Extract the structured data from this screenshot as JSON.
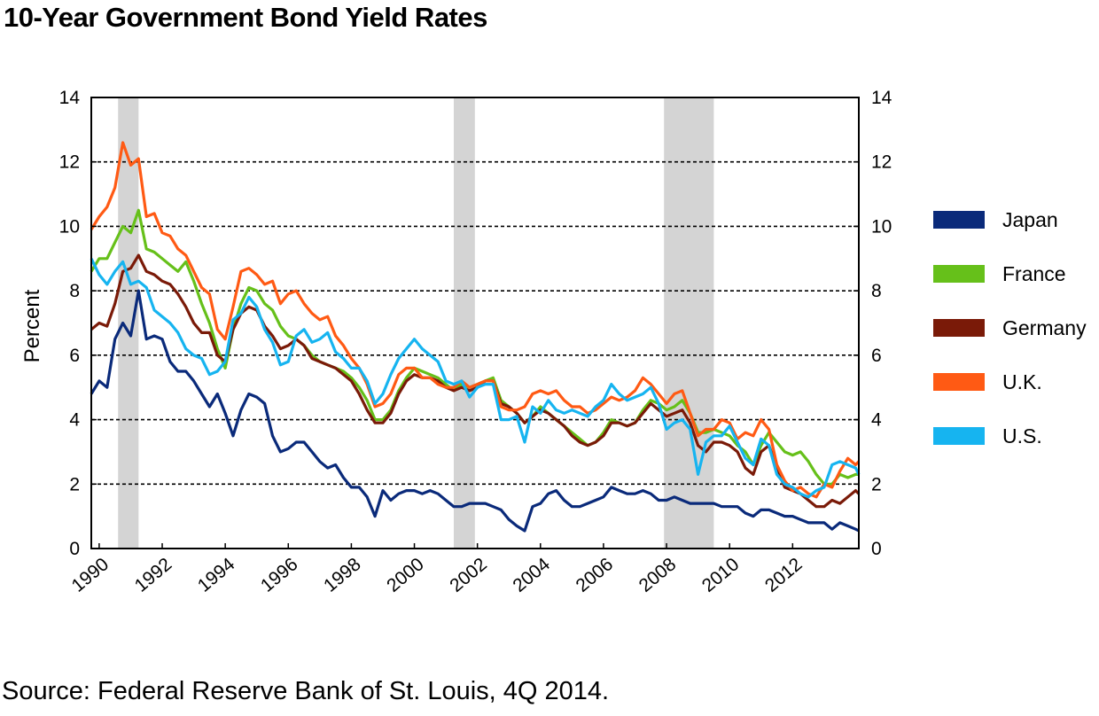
{
  "chart_data": {
    "type": "line",
    "title": "10-Year Government Bond Yield Rates",
    "source": "Source: Federal Reserve Bank of St. Louis, 4Q 2014.",
    "ylabel": "Percent",
    "ylim": [
      0,
      14
    ],
    "yticks": [
      "0",
      "2",
      "4",
      "6",
      "8",
      "10",
      "12",
      "14"
    ],
    "xlim": [
      1989.75,
      2014.1
    ],
    "xticks": [
      "1990",
      "1992",
      "1994",
      "1996",
      "1998",
      "2000",
      "2002",
      "2004",
      "2006",
      "2008",
      "2010",
      "2012"
    ],
    "grid": "horizontal dashed",
    "legend": "right",
    "recessions": [
      [
        1990.6,
        1991.25
      ],
      [
        2001.25,
        2001.92
      ],
      [
        2007.92,
        2009.5
      ]
    ],
    "series": [
      {
        "name": "Japan",
        "color": "#0a2a7a",
        "x": [
          1989.75,
          1990,
          1990.25,
          1990.5,
          1990.75,
          1991,
          1991.25,
          1991.5,
          1991.75,
          1992,
          1992.25,
          1992.5,
          1992.75,
          1993,
          1993.25,
          1993.5,
          1993.75,
          1994,
          1994.25,
          1994.5,
          1994.75,
          1995,
          1995.25,
          1995.5,
          1995.75,
          1996,
          1996.25,
          1996.5,
          1996.75,
          1997,
          1997.25,
          1997.5,
          1997.75,
          1998,
          1998.25,
          1998.5,
          1998.75,
          1999,
          1999.25,
          1999.5,
          1999.75,
          2000,
          2000.25,
          2000.5,
          2000.75,
          2001,
          2001.25,
          2001.5,
          2001.75,
          2002,
          2002.25,
          2002.5,
          2002.75,
          2003,
          2003.25,
          2003.5,
          2003.75,
          2004,
          2004.25,
          2004.5,
          2004.75,
          2005,
          2005.25,
          2005.5,
          2005.75,
          2006,
          2006.25,
          2006.5,
          2006.75,
          2007,
          2007.25,
          2007.5,
          2007.75,
          2008,
          2008.25,
          2008.5,
          2008.75,
          2009,
          2009.25,
          2009.5,
          2009.75,
          2010,
          2010.25,
          2010.5,
          2010.75,
          2011,
          2011.25,
          2011.5,
          2011.75,
          2012,
          2012.25,
          2012.5,
          2012.75,
          2013,
          2013.25,
          2013.5,
          2013.75,
          2014,
          2014.1
        ],
        "values": [
          4.8,
          5.2,
          5.0,
          6.5,
          7.0,
          6.6,
          8.0,
          6.5,
          6.6,
          6.5,
          5.8,
          5.5,
          5.5,
          5.2,
          4.8,
          4.4,
          4.8,
          4.2,
          3.5,
          4.3,
          4.8,
          4.7,
          4.5,
          3.5,
          3.0,
          3.1,
          3.3,
          3.3,
          3.0,
          2.7,
          2.5,
          2.6,
          2.2,
          1.9,
          1.9,
          1.6,
          1.0,
          1.8,
          1.5,
          1.7,
          1.8,
          1.8,
          1.7,
          1.8,
          1.7,
          1.5,
          1.3,
          1.3,
          1.4,
          1.4,
          1.4,
          1.3,
          1.2,
          0.9,
          0.7,
          0.55,
          1.3,
          1.4,
          1.7,
          1.8,
          1.5,
          1.3,
          1.3,
          1.4,
          1.5,
          1.6,
          1.9,
          1.8,
          1.7,
          1.7,
          1.8,
          1.7,
          1.5,
          1.5,
          1.6,
          1.5,
          1.4,
          1.4,
          1.4,
          1.4,
          1.3,
          1.3,
          1.3,
          1.1,
          1.0,
          1.2,
          1.2,
          1.1,
          1.0,
          1.0,
          0.9,
          0.8,
          0.8,
          0.8,
          0.6,
          0.8,
          0.7,
          0.6,
          0.55
        ]
      },
      {
        "name": "France",
        "color": "#66c01a",
        "x": [
          1989.75,
          1990,
          1990.25,
          1990.5,
          1990.75,
          1991,
          1991.25,
          1991.5,
          1991.75,
          1992,
          1992.25,
          1992.5,
          1992.75,
          1993,
          1993.25,
          1993.5,
          1993.75,
          1994,
          1994.25,
          1994.5,
          1994.75,
          1995,
          1995.25,
          1995.5,
          1995.75,
          1996,
          1996.25,
          1996.5,
          1996.75,
          1997,
          1997.25,
          1997.5,
          1997.75,
          1998,
          1998.25,
          1998.5,
          1998.75,
          1999,
          1999.25,
          1999.5,
          1999.75,
          2000,
          2000.25,
          2000.5,
          2000.75,
          2001,
          2001.25,
          2001.5,
          2001.75,
          2002,
          2002.25,
          2002.5,
          2002.75,
          2003,
          2003.25,
          2003.5,
          2003.75,
          2004,
          2004.25,
          2004.5,
          2004.75,
          2005,
          2005.25,
          2005.5,
          2005.75,
          2006,
          2006.25,
          2006.5,
          2006.75,
          2007,
          2007.25,
          2007.5,
          2007.75,
          2008,
          2008.25,
          2008.5,
          2008.75,
          2009,
          2009.25,
          2009.5,
          2009.75,
          2010,
          2010.25,
          2010.5,
          2010.75,
          2011,
          2011.25,
          2011.5,
          2011.75,
          2012,
          2012.25,
          2012.5,
          2012.75,
          2013,
          2013.25,
          2013.5,
          2013.75,
          2014,
          2014.1
        ],
        "values": [
          8.6,
          9.0,
          9.0,
          9.5,
          10.0,
          9.8,
          10.5,
          9.3,
          9.2,
          9.0,
          8.8,
          8.6,
          8.9,
          8.3,
          7.6,
          7.0,
          6.2,
          5.6,
          6.8,
          7.6,
          8.1,
          8.0,
          7.6,
          7.4,
          6.9,
          6.6,
          6.5,
          6.3,
          6.0,
          5.8,
          5.7,
          5.6,
          5.5,
          5.3,
          5.0,
          4.6,
          4.0,
          4.0,
          4.3,
          4.9,
          5.3,
          5.6,
          5.5,
          5.4,
          5.3,
          5.1,
          4.9,
          5.1,
          5.0,
          5.1,
          5.2,
          5.3,
          4.6,
          4.4,
          4.2,
          3.9,
          4.1,
          4.4,
          4.2,
          4.0,
          3.8,
          3.6,
          3.4,
          3.2,
          3.3,
          3.6,
          4.0,
          3.9,
          3.8,
          3.9,
          4.3,
          4.6,
          4.5,
          4.3,
          4.4,
          4.6,
          4.2,
          3.6,
          3.6,
          3.7,
          3.6,
          3.5,
          3.2,
          3.0,
          2.6,
          3.2,
          3.6,
          3.3,
          3.0,
          2.9,
          3.0,
          2.7,
          2.3,
          2.0,
          2.0,
          2.3,
          2.2,
          2.3,
          2.3
        ]
      },
      {
        "name": "Germany",
        "color": "#7a1a08",
        "x": [
          1989.75,
          1990,
          1990.25,
          1990.5,
          1990.75,
          1991,
          1991.25,
          1991.5,
          1991.75,
          1992,
          1992.25,
          1992.5,
          1992.75,
          1993,
          1993.25,
          1993.5,
          1993.75,
          1994,
          1994.25,
          1994.5,
          1994.75,
          1995,
          1995.25,
          1995.5,
          1995.75,
          1996,
          1996.25,
          1996.5,
          1996.75,
          1997,
          1997.25,
          1997.5,
          1997.75,
          1998,
          1998.25,
          1998.5,
          1998.75,
          1999,
          1999.25,
          1999.5,
          1999.75,
          2000,
          2000.25,
          2000.5,
          2000.75,
          2001,
          2001.25,
          2001.5,
          2001.75,
          2002,
          2002.25,
          2002.5,
          2002.75,
          2003,
          2003.25,
          2003.5,
          2003.75,
          2004,
          2004.25,
          2004.5,
          2004.75,
          2005,
          2005.25,
          2005.5,
          2005.75,
          2006,
          2006.25,
          2006.5,
          2006.75,
          2007,
          2007.25,
          2007.5,
          2007.75,
          2008,
          2008.25,
          2008.5,
          2008.75,
          2009,
          2009.25,
          2009.5,
          2009.75,
          2010,
          2010.25,
          2010.5,
          2010.75,
          2011,
          2011.25,
          2011.5,
          2011.75,
          2012,
          2012.25,
          2012.5,
          2012.75,
          2013,
          2013.25,
          2013.5,
          2013.75,
          2014,
          2014.1
        ],
        "values": [
          6.8,
          7.0,
          6.9,
          7.6,
          8.6,
          8.7,
          9.1,
          8.6,
          8.5,
          8.3,
          8.2,
          7.9,
          7.5,
          7.0,
          6.7,
          6.7,
          6.0,
          5.8,
          6.8,
          7.3,
          7.5,
          7.4,
          6.9,
          6.6,
          6.2,
          6.3,
          6.5,
          6.3,
          5.9,
          5.8,
          5.7,
          5.6,
          5.4,
          5.2,
          4.8,
          4.3,
          3.9,
          3.9,
          4.2,
          4.8,
          5.2,
          5.4,
          5.3,
          5.3,
          5.2,
          5.0,
          4.9,
          5.0,
          4.9,
          5.0,
          5.2,
          5.2,
          4.5,
          4.4,
          4.2,
          3.9,
          4.1,
          4.3,
          4.2,
          4.0,
          3.8,
          3.5,
          3.3,
          3.2,
          3.3,
          3.5,
          3.9,
          3.9,
          3.8,
          3.9,
          4.2,
          4.5,
          4.3,
          4.1,
          4.2,
          4.3,
          3.9,
          3.2,
          3.0,
          3.3,
          3.3,
          3.2,
          3.0,
          2.5,
          2.3,
          3.0,
          3.2,
          2.5,
          1.9,
          1.8,
          1.7,
          1.5,
          1.3,
          1.3,
          1.5,
          1.4,
          1.6,
          1.8,
          1.7
        ]
      },
      {
        "name": "U.K.",
        "color": "#ff5a14",
        "x": [
          1989.75,
          1990,
          1990.25,
          1990.5,
          1990.75,
          1991,
          1991.25,
          1991.5,
          1991.75,
          1992,
          1992.25,
          1992.5,
          1992.75,
          1993,
          1993.25,
          1993.5,
          1993.75,
          1994,
          1994.25,
          1994.5,
          1994.75,
          1995,
          1995.25,
          1995.5,
          1995.75,
          1996,
          1996.25,
          1996.5,
          1996.75,
          1997,
          1997.25,
          1997.5,
          1997.75,
          1998,
          1998.25,
          1998.5,
          1998.75,
          1999,
          1999.25,
          1999.5,
          1999.75,
          2000,
          2000.25,
          2000.5,
          2000.75,
          2001,
          2001.25,
          2001.5,
          2001.75,
          2002,
          2002.25,
          2002.5,
          2002.75,
          2003,
          2003.25,
          2003.5,
          2003.75,
          2004,
          2004.25,
          2004.5,
          2004.75,
          2005,
          2005.25,
          2005.5,
          2005.75,
          2006,
          2006.25,
          2006.5,
          2006.75,
          2007,
          2007.25,
          2007.5,
          2007.75,
          2008,
          2008.25,
          2008.5,
          2008.75,
          2009,
          2009.25,
          2009.5,
          2009.75,
          2010,
          2010.25,
          2010.5,
          2010.75,
          2011,
          2011.25,
          2011.5,
          2011.75,
          2012,
          2012.25,
          2012.5,
          2012.75,
          2013,
          2013.25,
          2013.5,
          2013.75,
          2014,
          2014.1
        ],
        "values": [
          9.9,
          10.3,
          10.6,
          11.2,
          12.6,
          11.9,
          12.1,
          10.3,
          10.4,
          9.8,
          9.7,
          9.3,
          9.1,
          8.6,
          8.1,
          7.9,
          6.8,
          6.5,
          7.5,
          8.6,
          8.7,
          8.5,
          8.2,
          8.3,
          7.6,
          7.9,
          8.0,
          7.6,
          7.3,
          7.1,
          7.2,
          6.6,
          6.3,
          5.9,
          5.6,
          5.1,
          4.4,
          4.5,
          4.8,
          5.4,
          5.6,
          5.6,
          5.3,
          5.3,
          5.1,
          5.0,
          5.0,
          5.2,
          5.0,
          5.1,
          5.2,
          5.2,
          4.4,
          4.3,
          4.3,
          4.4,
          4.8,
          4.9,
          4.8,
          4.9,
          4.6,
          4.4,
          4.4,
          4.2,
          4.3,
          4.5,
          4.7,
          4.6,
          4.7,
          4.9,
          5.3,
          5.1,
          4.8,
          4.5,
          4.8,
          4.9,
          4.2,
          3.5,
          3.7,
          3.7,
          4.0,
          3.9,
          3.4,
          3.6,
          3.5,
          4.0,
          3.7,
          2.6,
          2.1,
          1.8,
          1.9,
          1.7,
          1.6,
          2.0,
          1.9,
          2.4,
          2.8,
          2.6,
          2.7
        ]
      },
      {
        "name": "U.S.",
        "color": "#16b4f0",
        "x": [
          1989.75,
          1990,
          1990.25,
          1990.5,
          1990.75,
          1991,
          1991.25,
          1991.5,
          1991.75,
          1992,
          1992.25,
          1992.5,
          1992.75,
          1993,
          1993.25,
          1993.5,
          1993.75,
          1994,
          1994.25,
          1994.5,
          1994.75,
          1995,
          1995.25,
          1995.5,
          1995.75,
          1996,
          1996.25,
          1996.5,
          1996.75,
          1997,
          1997.25,
          1997.5,
          1997.75,
          1998,
          1998.25,
          1998.5,
          1998.75,
          1999,
          1999.25,
          1999.5,
          1999.75,
          2000,
          2000.25,
          2000.5,
          2000.75,
          2001,
          2001.25,
          2001.5,
          2001.75,
          2002,
          2002.25,
          2002.5,
          2002.75,
          2003,
          2003.25,
          2003.5,
          2003.75,
          2004,
          2004.25,
          2004.5,
          2004.75,
          2005,
          2005.25,
          2005.5,
          2005.75,
          2006,
          2006.25,
          2006.5,
          2006.75,
          2007,
          2007.25,
          2007.5,
          2007.75,
          2008,
          2008.25,
          2008.5,
          2008.75,
          2009,
          2009.25,
          2009.5,
          2009.75,
          2010,
          2010.25,
          2010.5,
          2010.75,
          2011,
          2011.25,
          2011.5,
          2011.75,
          2012,
          2012.25,
          2012.5,
          2012.75,
          2013,
          2013.25,
          2013.5,
          2013.75,
          2014,
          2014.1
        ],
        "values": [
          9.0,
          8.5,
          8.2,
          8.6,
          8.9,
          8.2,
          8.3,
          8.1,
          7.4,
          7.2,
          7.0,
          6.7,
          6.2,
          6.0,
          5.9,
          5.4,
          5.5,
          5.8,
          7.1,
          7.3,
          7.8,
          7.5,
          6.8,
          6.4,
          5.7,
          5.8,
          6.6,
          6.8,
          6.4,
          6.5,
          6.7,
          6.1,
          5.9,
          5.6,
          5.6,
          5.2,
          4.5,
          4.8,
          5.4,
          5.9,
          6.2,
          6.5,
          6.2,
          6.0,
          5.8,
          5.2,
          5.1,
          5.2,
          4.7,
          5.0,
          5.1,
          5.1,
          4.0,
          4.0,
          4.1,
          3.3,
          4.4,
          4.2,
          4.6,
          4.3,
          4.2,
          4.3,
          4.2,
          4.1,
          4.4,
          4.6,
          5.1,
          4.8,
          4.6,
          4.7,
          4.8,
          5.0,
          4.5,
          3.7,
          3.9,
          4.0,
          3.7,
          2.3,
          3.3,
          3.5,
          3.5,
          3.8,
          3.3,
          2.8,
          2.6,
          3.4,
          3.2,
          2.3,
          2.0,
          1.9,
          1.7,
          1.6,
          1.8,
          1.9,
          2.6,
          2.7,
          2.6,
          2.5,
          2.3
        ]
      }
    ]
  },
  "axes": {
    "right_yticks": [
      "0",
      "2",
      "4",
      "6",
      "8",
      "10",
      "12",
      "14"
    ]
  }
}
